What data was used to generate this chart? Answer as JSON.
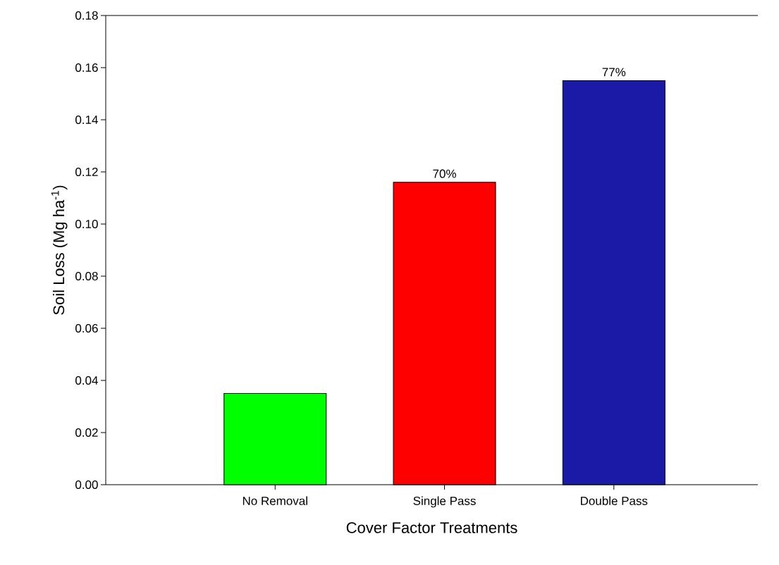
{
  "chart_data": {
    "type": "bar",
    "xlabel": "Cover Factor Treatments",
    "ylabel": "Soil Loss (Mg ha$^{-1}$)",
    "categories": [
      "No Removal",
      "Single Pass",
      "Double Pass"
    ],
    "values": [
      0.035,
      0.116,
      0.155
    ],
    "colors": [
      "#00ff00",
      "#ff0000",
      "#1a1aa6"
    ],
    "annotations": [
      {
        "text": "70%",
        "x": "Single Pass",
        "y": 0.116
      },
      {
        "text": "77%",
        "x": "Double Pass",
        "y": 0.155
      }
    ],
    "ylim": [
      0,
      0.18
    ],
    "yticks": [
      {
        "value": 0,
        "label": "0.00"
      },
      {
        "value": 0.02,
        "label": "0.02"
      },
      {
        "value": 0.04,
        "label": "0.04"
      },
      {
        "value": 0.06,
        "label": "0.06"
      },
      {
        "value": 0.08,
        "label": "0.08"
      },
      {
        "value": 0.1,
        "label": "0.10"
      },
      {
        "value": 0.12,
        "label": "0.12"
      },
      {
        "value": 0.14,
        "label": "0.14"
      },
      {
        "value": 0.16,
        "label": "0.16"
      },
      {
        "value": 0.18,
        "label": "0.18"
      }
    ],
    "grid": false
  }
}
